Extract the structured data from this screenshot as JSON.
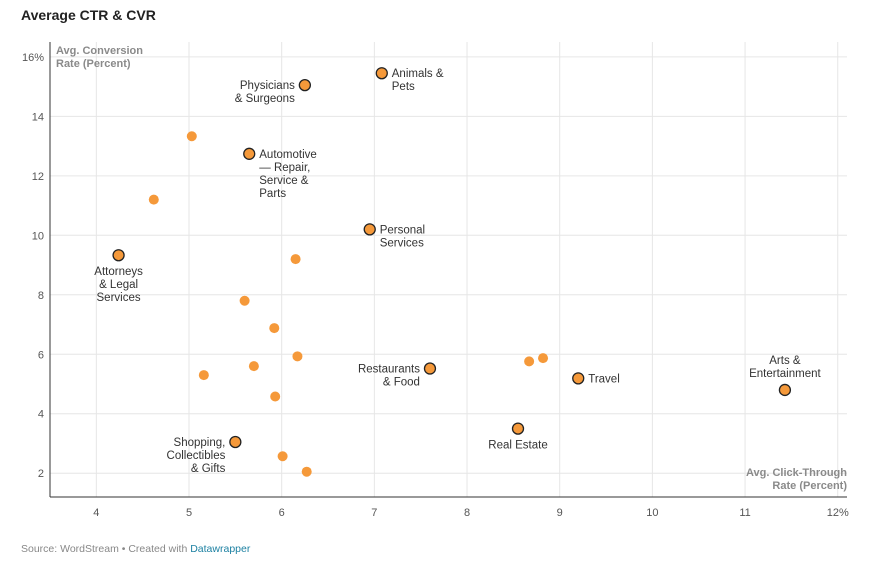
{
  "header": {
    "title": "Average CTR & CVR"
  },
  "footer": {
    "source": "Source: WordStream • Created with ",
    "link_text": "Datawrapper"
  },
  "chart_data": {
    "type": "scatter",
    "title": "Average CTR & CVR",
    "xlabel_lines": [
      "Avg. Click-Through",
      "Rate (Percent)"
    ],
    "ylabel_lines": [
      "Avg. Conversion",
      "Rate (Percent)"
    ],
    "xlim": [
      3.5,
      12.1
    ],
    "ylim": [
      1.2,
      16.5
    ],
    "x_ticks": [
      {
        "value": 4,
        "label": "4"
      },
      {
        "value": 5,
        "label": "5"
      },
      {
        "value": 6,
        "label": "6"
      },
      {
        "value": 7,
        "label": "7"
      },
      {
        "value": 8,
        "label": "8"
      },
      {
        "value": 9,
        "label": "9"
      },
      {
        "value": 10,
        "label": "10"
      },
      {
        "value": 11,
        "label": "11"
      },
      {
        "value": 12,
        "label": "12%"
      }
    ],
    "y_ticks": [
      {
        "value": 2,
        "label": "2"
      },
      {
        "value": 4,
        "label": "4"
      },
      {
        "value": 6,
        "label": "6"
      },
      {
        "value": 8,
        "label": "8"
      },
      {
        "value": 10,
        "label": "10"
      },
      {
        "value": 12,
        "label": "12"
      },
      {
        "value": 14,
        "label": "14"
      },
      {
        "value": 16,
        "label": "16%"
      }
    ],
    "grid": true,
    "colors": {
      "point": "#f5993a",
      "outline": "#222222"
    },
    "points": [
      {
        "x": 4.24,
        "y": 9.33,
        "label": [
          "Attorneys",
          "& Legal",
          "Services"
        ],
        "label_pos": "below"
      },
      {
        "x": 5.5,
        "y": 3.05,
        "label": [
          "Shopping,",
          "Collectibles",
          "& Gifts"
        ],
        "label_pos": "left-down"
      },
      {
        "x": 5.65,
        "y": 12.74,
        "label": [
          "Automotive",
          "— Repair,",
          "Service &",
          "Parts"
        ],
        "label_pos": "right"
      },
      {
        "x": 6.25,
        "y": 15.05,
        "label": [
          "Physicians",
          "& Surgeons"
        ],
        "label_pos": "left"
      },
      {
        "x": 6.95,
        "y": 10.2,
        "label": [
          "Personal",
          "Services"
        ],
        "label_pos": "right"
      },
      {
        "x": 7.08,
        "y": 15.45,
        "label": [
          "Animals &",
          "Pets"
        ],
        "label_pos": "right"
      },
      {
        "x": 7.6,
        "y": 5.52,
        "label": [
          "Restaurants",
          "& Food"
        ],
        "label_pos": "left"
      },
      {
        "x": 8.55,
        "y": 3.5,
        "label": [
          "Real Estate"
        ],
        "label_pos": "below"
      },
      {
        "x": 9.2,
        "y": 5.19,
        "label": [
          "Travel"
        ],
        "label_pos": "right"
      },
      {
        "x": 11.43,
        "y": 4.8,
        "label": [
          "Arts &",
          "Entertainment"
        ],
        "label_pos": "above"
      },
      {
        "x": 5.03,
        "y": 13.33,
        "label": []
      },
      {
        "x": 4.62,
        "y": 11.2,
        "label": []
      },
      {
        "x": 6.15,
        "y": 9.2,
        "label": []
      },
      {
        "x": 5.6,
        "y": 7.8,
        "label": []
      },
      {
        "x": 5.92,
        "y": 6.88,
        "label": []
      },
      {
        "x": 6.17,
        "y": 5.93,
        "label": []
      },
      {
        "x": 5.7,
        "y": 5.6,
        "label": []
      },
      {
        "x": 5.16,
        "y": 5.3,
        "label": []
      },
      {
        "x": 5.93,
        "y": 4.58,
        "label": []
      },
      {
        "x": 6.01,
        "y": 2.57,
        "label": []
      },
      {
        "x": 6.27,
        "y": 2.05,
        "label": []
      },
      {
        "x": 8.67,
        "y": 5.76,
        "label": []
      },
      {
        "x": 8.82,
        "y": 5.87,
        "label": []
      }
    ]
  }
}
